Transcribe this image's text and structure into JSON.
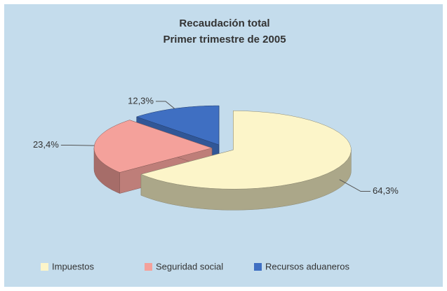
{
  "chart_data": {
    "type": "pie",
    "title": "Recaudación total",
    "subtitle": "Primer trimestre de 2005",
    "categories": [
      "Impuestos",
      "Seguridad social",
      "Recursos aduaneros"
    ],
    "values": [
      64.3,
      23.4,
      12.3
    ],
    "value_labels": [
      "64,3%",
      "23,4%",
      "12,3%"
    ],
    "colors": [
      "#fcf5c9",
      "#f4a19b",
      "#3f6fc2"
    ],
    "legend": "bottom"
  }
}
